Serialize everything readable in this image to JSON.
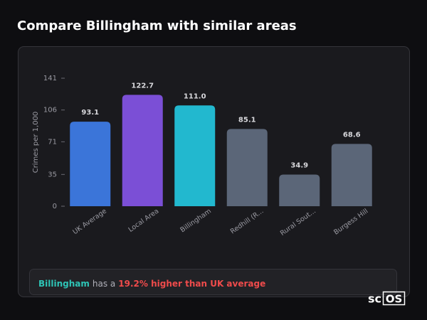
{
  "title": "Compare Billingham with similar areas",
  "chart_data": {
    "type": "bar",
    "y_label": "Crimes per 1,000",
    "categories": [
      "UK Average",
      "Local Area",
      "Billingham",
      "Redhill (R...",
      "Rural Sout...",
      "Burgess Hill"
    ],
    "values": [
      93.1,
      122.7,
      111.0,
      85.1,
      34.9,
      68.6
    ],
    "value_labels": [
      "93.1",
      "122.7",
      "111.0",
      "85.1",
      "34.9",
      "68.6"
    ],
    "colors": [
      "#3b75d9",
      "#7b4fd6",
      "#22b8cf",
      "#5b6678",
      "#5b6678",
      "#5b6678"
    ],
    "ylim": [
      0,
      141
    ],
    "yticks": [
      0,
      35,
      71,
      106,
      141
    ]
  },
  "summary": {
    "area": "Billingham",
    "connector": "has a",
    "comparison": "19.2% higher than UK average"
  },
  "logo": {
    "prefix": "sc",
    "boxed": "OS"
  }
}
